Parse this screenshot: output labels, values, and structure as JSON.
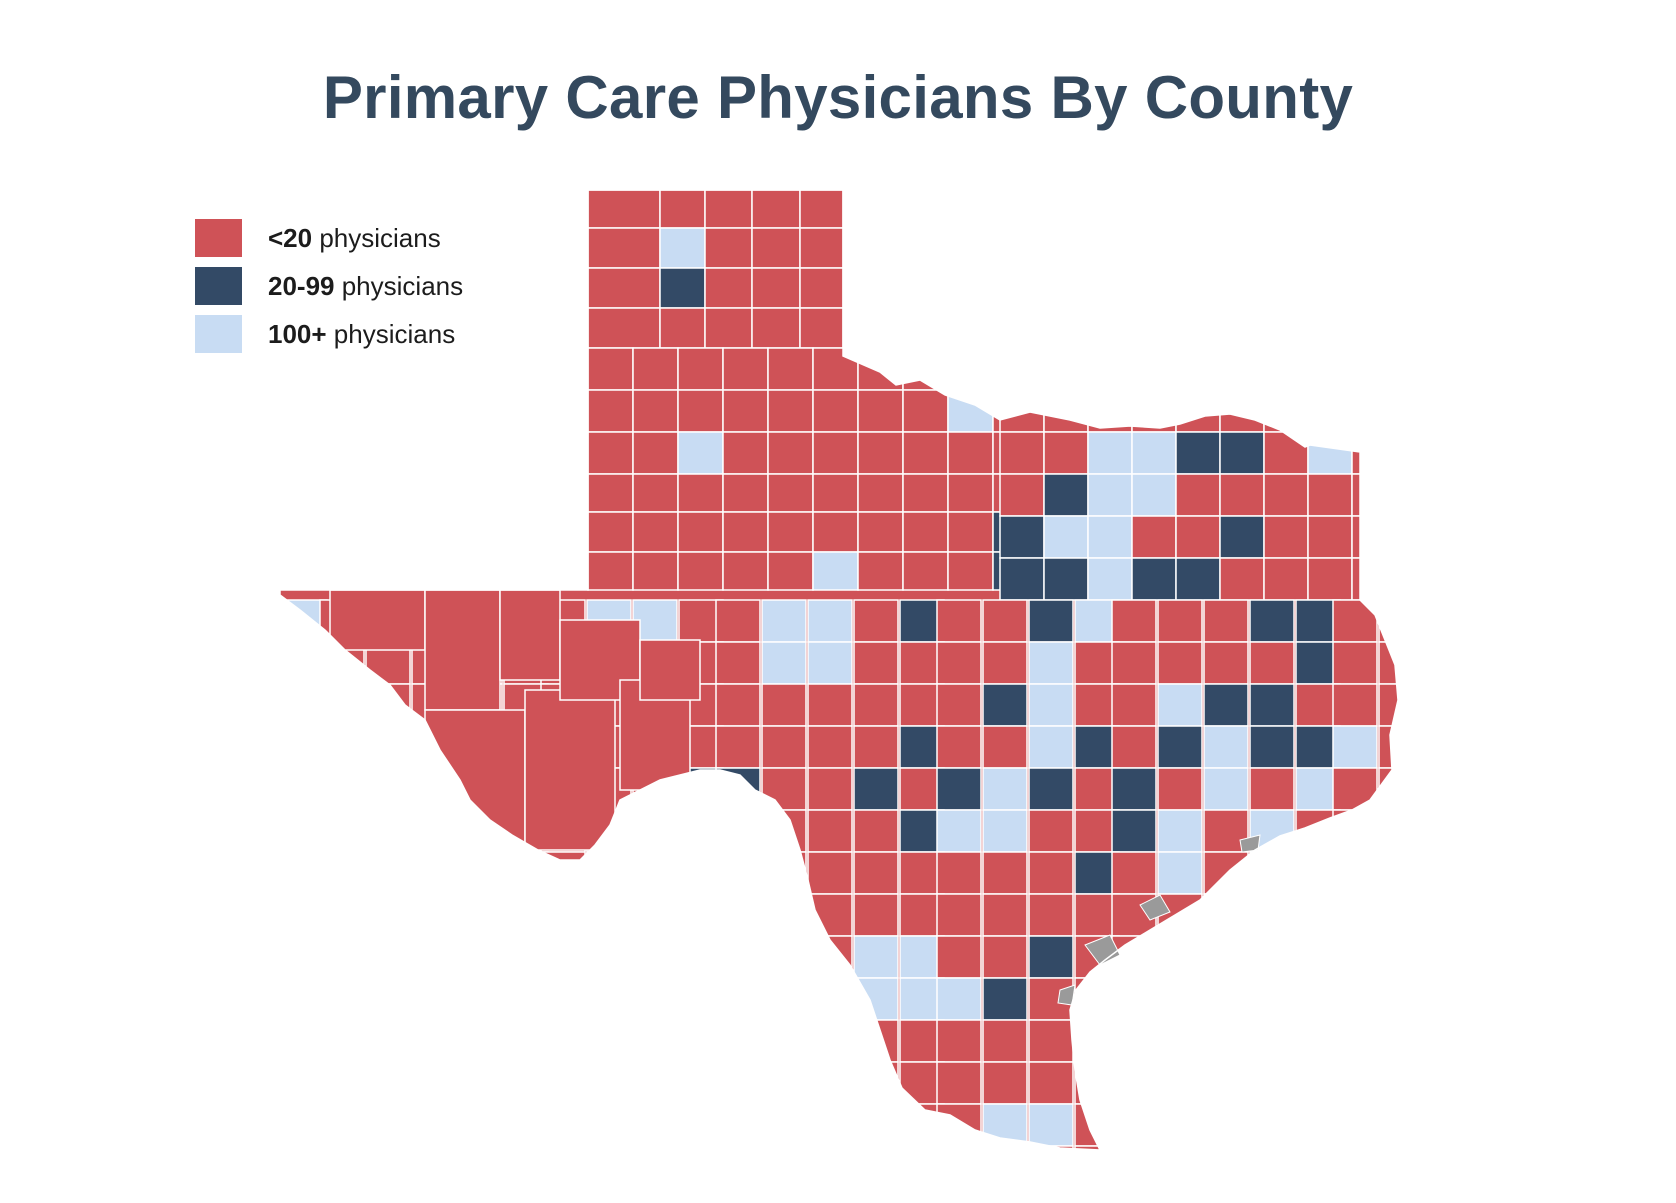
{
  "title": "Primary Care Physicians By County",
  "colors": {
    "title": "#34495e",
    "low": "#cf5257",
    "mid": "#334a66",
    "high": "#c8dcf3",
    "border": "#ffffff",
    "water": "#9a9a9a"
  },
  "legend": [
    {
      "category": "low",
      "bold": "<20",
      "text": " physicians"
    },
    {
      "category": "mid",
      "bold": "20-99",
      "text": " physicians"
    },
    {
      "category": "high",
      "bold": "100+",
      "text": " physicians"
    }
  ]
}
